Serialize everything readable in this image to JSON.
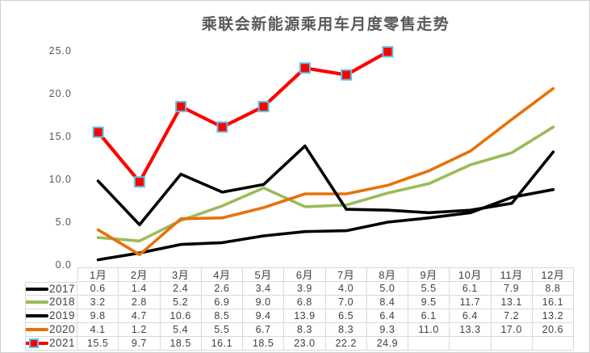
{
  "title": "乘联会新能源乘用车月度零售走势",
  "colors": {
    "title_text": "#595959",
    "axis_text": "#595959",
    "table_text": "#3F3F3F",
    "grid_border": "#D9D9D9",
    "frame_border": "#D0D0D0",
    "series_2017": "#000000",
    "series_2018": "#9BBB59",
    "series_2019": "#000000",
    "series_2020": "#E8710A",
    "series_2021": "#FF0000",
    "marker_border": "#5BC2E7"
  },
  "chart_data": {
    "type": "line",
    "title": "乘联会新能源乘用车月度零售走势",
    "categories": [
      "1月",
      "2月",
      "3月",
      "4月",
      "5月",
      "6月",
      "7月",
      "8月",
      "9月",
      "10月",
      "11月",
      "12月"
    ],
    "ylim": [
      0,
      25
    ],
    "ytick_labels": [
      "0.0",
      "5.0",
      "10.0",
      "15.0",
      "20.0",
      "25.0"
    ],
    "grid": false,
    "legend_position": "table-left",
    "series": [
      {
        "name": "2017",
        "color": "#000000",
        "marker": "none",
        "values": [
          0.6,
          1.4,
          2.4,
          2.6,
          3.4,
          3.9,
          4.0,
          5.0,
          5.5,
          6.1,
          7.9,
          8.8
        ]
      },
      {
        "name": "2018",
        "color": "#9BBB59",
        "marker": "none",
        "values": [
          3.2,
          2.8,
          5.2,
          6.9,
          9.0,
          6.8,
          7.0,
          8.4,
          9.5,
          11.7,
          13.1,
          16.1
        ]
      },
      {
        "name": "2019",
        "color": "#000000",
        "marker": "none",
        "values": [
          9.8,
          4.7,
          10.6,
          8.5,
          9.4,
          13.9,
          6.5,
          6.4,
          6.1,
          6.4,
          7.2,
          13.2
        ]
      },
      {
        "name": "2020",
        "color": "#E8710A",
        "marker": "none",
        "values": [
          4.1,
          1.2,
          5.4,
          5.5,
          6.7,
          8.3,
          8.3,
          9.3,
          11.0,
          13.3,
          17.0,
          20.6
        ]
      },
      {
        "name": "2021",
        "color": "#FF0000",
        "marker": "square",
        "marker_border": "#5BC2E7",
        "values": [
          15.5,
          9.7,
          18.5,
          16.1,
          18.5,
          23.0,
          22.2,
          24.9,
          null,
          null,
          null,
          null
        ]
      }
    ]
  }
}
